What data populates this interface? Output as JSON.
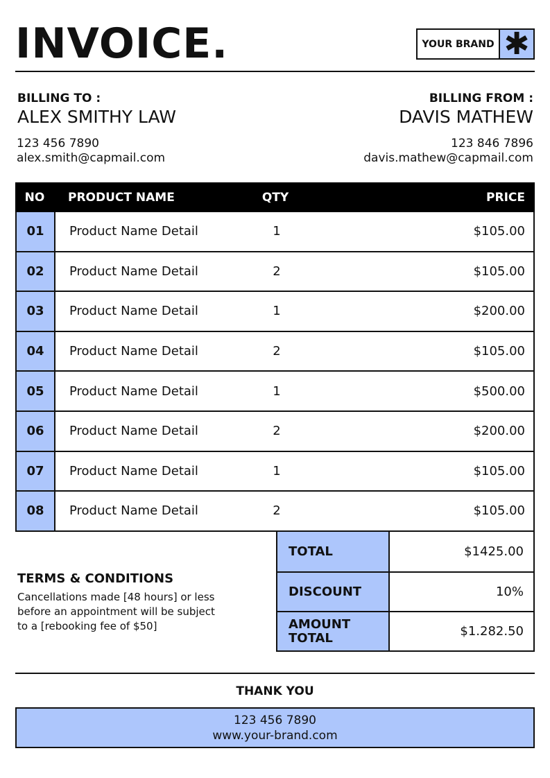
{
  "title": "INVOICE.",
  "brand": {
    "label": "YOUR BRAND",
    "icon": "asterisk-icon",
    "glyph": "✱"
  },
  "billing_to": {
    "label": "BILLING TO :",
    "name": "ALEX SMITHY LAW",
    "phone": "123 456 7890",
    "email": "alex.smith@capmail.com"
  },
  "billing_from": {
    "label": "BILLING FROM :",
    "name": "DAVIS MATHEW",
    "phone": "123 846 7896",
    "email": "davis.mathew@capmail.com"
  },
  "table": {
    "headers": {
      "no": "NO",
      "name": "PRODUCT NAME",
      "qty": "QTY",
      "price": "PRICE"
    },
    "rows": [
      {
        "no": "01",
        "name": "Product Name Detail",
        "qty": "1",
        "price": "$105.00"
      },
      {
        "no": "02",
        "name": "Product Name Detail",
        "qty": "2",
        "price": "$105.00"
      },
      {
        "no": "03",
        "name": "Product Name Detail",
        "qty": "1",
        "price": "$200.00"
      },
      {
        "no": "04",
        "name": "Product Name Detail",
        "qty": "2",
        "price": "$105.00"
      },
      {
        "no": "05",
        "name": "Product Name Detail",
        "qty": "1",
        "price": "$500.00"
      },
      {
        "no": "06",
        "name": "Product Name Detail",
        "qty": "2",
        "price": "$200.00"
      },
      {
        "no": "07",
        "name": "Product Name Detail",
        "qty": "1",
        "price": "$105.00"
      },
      {
        "no": "08",
        "name": "Product Name Detail",
        "qty": "2",
        "price": "$105.00"
      }
    ]
  },
  "summary": [
    {
      "label": "TOTAL",
      "value": "$1425.00"
    },
    {
      "label": "DISCOUNT",
      "value": "10%"
    },
    {
      "label": "AMOUNT TOTAL",
      "value": "$1.282.50"
    }
  ],
  "terms": {
    "heading": "TERMS & CONDITIONS",
    "lines": [
      "Cancellations made [48 hours] or less",
      "before an appointment will be subject",
      "to a [rebooking fee of $50]"
    ]
  },
  "thank_you": "THANK YOU",
  "footer": {
    "phone": "123 456 7890",
    "website": "www.your-brand.com"
  },
  "colors": {
    "accent": "#adc6fc",
    "dark": "#000000"
  }
}
